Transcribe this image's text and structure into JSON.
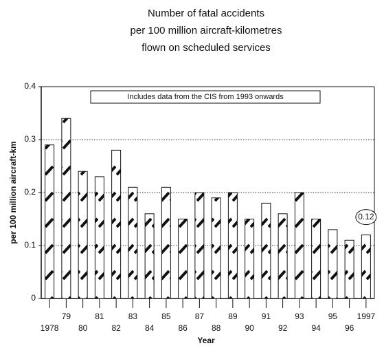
{
  "chart_data": {
    "type": "bar",
    "title": [
      "Number of fatal accidents",
      "per 100 million aircraft-kilometres",
      "flown on scheduled services"
    ],
    "annotation": "Includes data from the CIS from 1993 onwards",
    "x_label": "Year",
    "y_label": "per 100 million aircraft-km",
    "categories": [
      "1978",
      "79",
      "80",
      "81",
      "82",
      "83",
      "84",
      "85",
      "86",
      "87",
      "88",
      "89",
      "90",
      "91",
      "92",
      "93",
      "94",
      "95",
      "96",
      "1997"
    ],
    "values": [
      0.29,
      0.34,
      0.24,
      0.23,
      0.28,
      0.21,
      0.16,
      0.21,
      0.15,
      0.2,
      0.19,
      0.2,
      0.15,
      0.18,
      0.16,
      0.2,
      0.15,
      0.13,
      0.11,
      0.12
    ],
    "labelled_bar": 19,
    "color": "#ffffff",
    "ylim": [
      0,
      0.4
    ],
    "yticks": [
      0,
      0.1,
      0.2,
      0.3,
      0.4
    ],
    "grid": true
  }
}
